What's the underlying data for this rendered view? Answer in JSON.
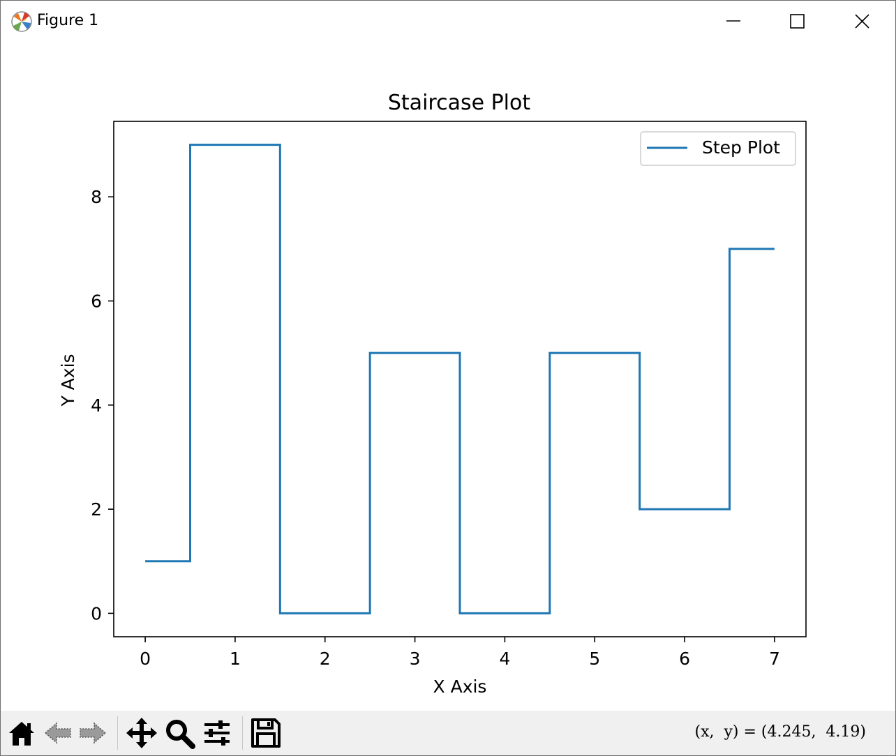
{
  "window": {
    "title": "Figure 1",
    "icons": {
      "app": "matplotlib-logo-icon",
      "minimize": "minimize-icon",
      "maximize": "maximize-icon",
      "close": "close-icon"
    }
  },
  "toolbar": {
    "buttons": [
      {
        "name": "home",
        "icon": "home-icon"
      },
      {
        "name": "back",
        "icon": "back-arrow-icon"
      },
      {
        "name": "forward",
        "icon": "forward-arrow-icon"
      },
      {
        "name": "pan",
        "icon": "move-icon"
      },
      {
        "name": "zoom",
        "icon": "zoom-magnifier-icon"
      },
      {
        "name": "configure-subplots",
        "icon": "sliders-icon"
      },
      {
        "name": "save",
        "icon": "floppy-disk-icon"
      }
    ],
    "coords_text": "(x,  y) = (4.245,  4.19)"
  },
  "chart_data": {
    "type": "line",
    "drawstyle": "steps-mid",
    "title": "Staircase Plot",
    "xlabel": "X Axis",
    "ylabel": "Y Axis",
    "x": [
      0,
      1,
      2,
      3,
      4,
      5,
      6,
      7
    ],
    "series": [
      {
        "name": "Step Plot",
        "values": [
          1,
          9,
          0,
          5,
          0,
          5,
          2,
          7
        ],
        "color": "#1f77b4"
      }
    ],
    "xticks": [
      0,
      1,
      2,
      3,
      4,
      5,
      6,
      7
    ],
    "yticks": [
      0,
      2,
      4,
      6,
      8
    ],
    "xlim": [
      -0.35,
      7.35
    ],
    "ylim": [
      -0.45,
      9.45
    ],
    "legend": "upper-right",
    "grid": false
  }
}
